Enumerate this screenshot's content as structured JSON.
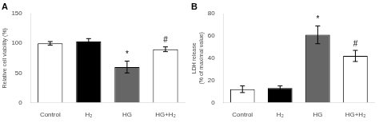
{
  "chart_data": [
    {
      "type": "bar",
      "title": "A",
      "categories": [
        "Control",
        "H₂",
        "HG",
        "HG+H₂"
      ],
      "values": [
        100,
        103,
        60,
        90
      ],
      "errors": [
        3,
        5,
        10,
        4
      ],
      "colors": [
        "white",
        "black",
        "#666666",
        "white"
      ],
      "ylabel": "Relative cell viability (%)",
      "ylim": [
        0,
        150
      ],
      "yticks": [
        0,
        50,
        100,
        150
      ],
      "grid": false,
      "annotations": [
        {
          "text": "*",
          "x": "HG"
        },
        {
          "text": "#",
          "x": "HG+H₂"
        }
      ]
    },
    {
      "type": "bar",
      "title": "B",
      "categories": [
        "Control",
        "H₂",
        "HG",
        "HG+H₂"
      ],
      "values": [
        12,
        13,
        61,
        42
      ],
      "errors": [
        3,
        2,
        8,
        5
      ],
      "colors": [
        "white",
        "black",
        "#666666",
        "white"
      ],
      "ylabel": "LDH release\n(% of maximal value)",
      "ylim": [
        0,
        80
      ],
      "yticks": [
        0,
        20,
        40,
        60,
        80
      ],
      "grid": false,
      "annotations": [
        {
          "text": "*",
          "x": "HG"
        },
        {
          "text": "#",
          "x": "HG+H₂"
        }
      ]
    }
  ]
}
